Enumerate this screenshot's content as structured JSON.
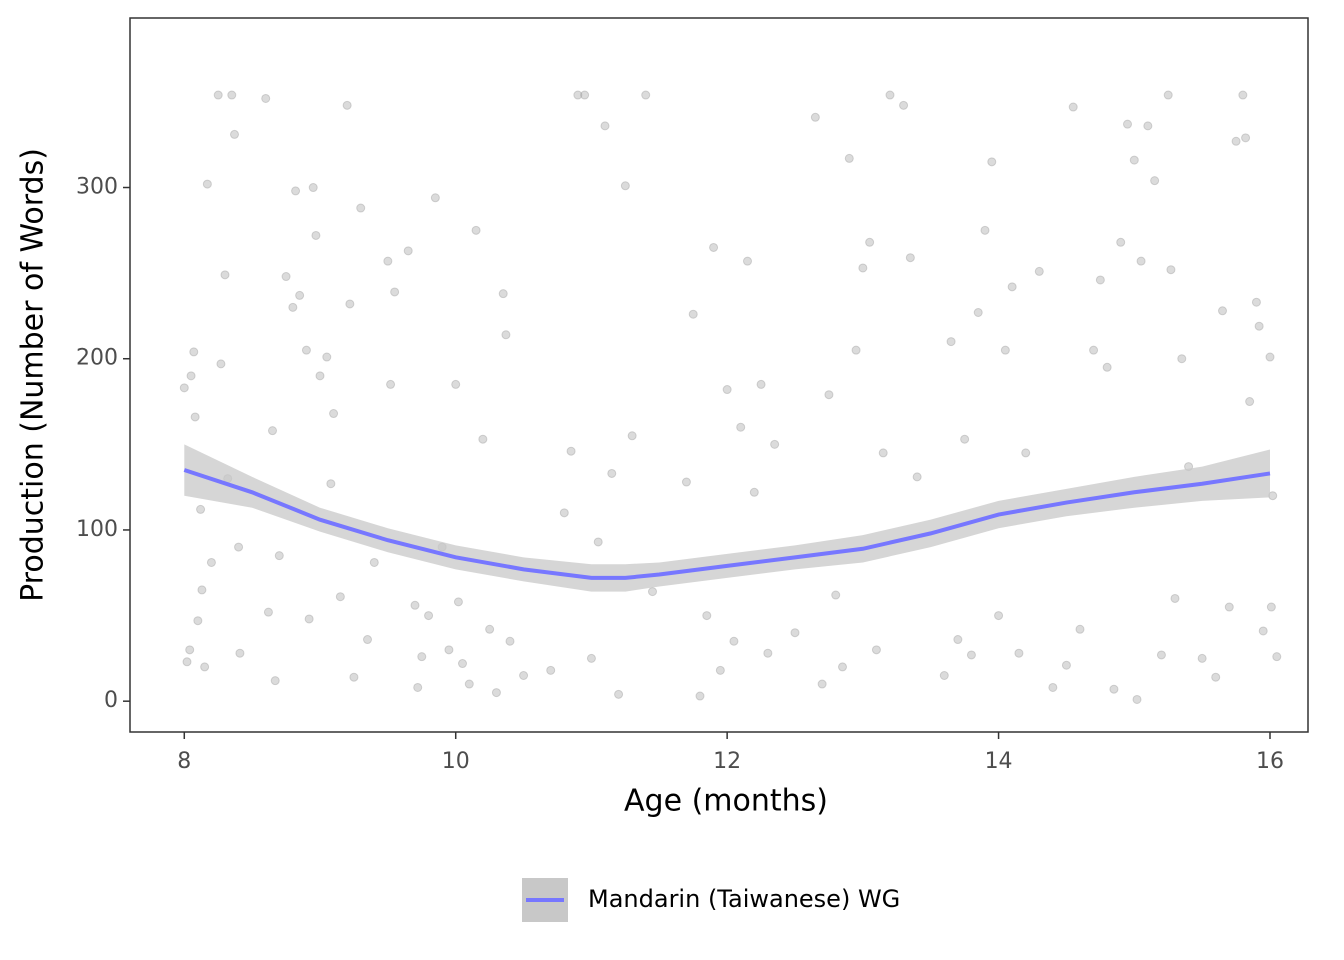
{
  "chart_data": {
    "type": "scatter-smooth",
    "x_label": "Age (months)",
    "y_label": "Production (Number of Words)",
    "xlim": [
      7.6,
      16.28
    ],
    "ylim": [
      -18,
      399
    ],
    "xticks": [
      8,
      10,
      12,
      14,
      16
    ],
    "yticks": [
      0,
      100,
      200,
      300
    ],
    "grid": false,
    "legend": "bottom",
    "points": {
      "color": "#999999",
      "x": [
        8.0,
        8.02,
        8.04,
        8.05,
        8.07,
        8.08,
        8.1,
        8.12,
        8.13,
        8.15,
        8.17,
        8.2,
        8.25,
        8.27,
        8.3,
        8.32,
        8.35,
        8.37,
        8.4,
        8.41,
        8.6,
        8.62,
        8.65,
        8.67,
        8.7,
        8.75,
        8.8,
        8.82,
        8.85,
        8.9,
        8.92,
        8.95,
        8.97,
        9.0,
        9.05,
        9.08,
        9.1,
        9.15,
        9.2,
        9.22,
        9.25,
        9.3,
        9.35,
        9.4,
        9.5,
        9.55,
        9.52,
        9.65,
        9.7,
        9.72,
        9.75,
        9.8,
        9.85,
        9.9,
        9.95,
        10.0,
        10.02,
        10.05,
        10.1,
        10.15,
        10.2,
        10.25,
        10.3,
        10.35,
        10.37,
        10.4,
        10.5,
        10.7,
        10.8,
        10.85,
        10.9,
        10.95,
        11.0,
        11.05,
        11.1,
        11.15,
        11.2,
        11.25,
        11.3,
        11.4,
        11.45,
        11.7,
        11.75,
        11.8,
        11.85,
        11.9,
        11.95,
        12.0,
        12.05,
        12.1,
        12.15,
        12.2,
        12.25,
        12.3,
        12.35,
        12.5,
        12.65,
        12.7,
        12.75,
        12.8,
        12.85,
        12.9,
        12.95,
        13.0,
        13.05,
        13.1,
        13.15,
        13.2,
        13.3,
        13.35,
        13.4,
        13.6,
        13.65,
        13.7,
        13.75,
        13.8,
        13.85,
        13.9,
        13.95,
        14.0,
        14.05,
        14.1,
        14.15,
        14.2,
        14.3,
        14.4,
        14.5,
        14.55,
        14.6,
        14.7,
        14.75,
        14.8,
        14.85,
        14.9,
        14.95,
        15.0,
        15.02,
        15.05,
        15.1,
        15.15,
        15.2,
        15.25,
        15.27,
        15.3,
        15.35,
        15.4,
        15.5,
        15.6,
        15.65,
        15.7,
        15.75,
        15.8,
        15.82,
        15.85,
        15.9,
        15.92,
        15.95,
        16.0,
        16.02,
        16.05,
        16.01
      ],
      "values": [
        183,
        23,
        30,
        190,
        204,
        166,
        47,
        112,
        65,
        20,
        302,
        81,
        354,
        197,
        249,
        130,
        354,
        331,
        90,
        28,
        352,
        52,
        158,
        12,
        85,
        248,
        230,
        298,
        237,
        205,
        48,
        300,
        272,
        190,
        201,
        127,
        168,
        61,
        348,
        232,
        14,
        288,
        36,
        81,
        257,
        239,
        185,
        263,
        56,
        8,
        26,
        50,
        294,
        90,
        30,
        185,
        58,
        22,
        10,
        275,
        153,
        42,
        5,
        238,
        214,
        35,
        15,
        18,
        110,
        146,
        354,
        354,
        25,
        93,
        336,
        133,
        4,
        301,
        155,
        354,
        64,
        128,
        226,
        3,
        50,
        265,
        18,
        182,
        35,
        160,
        257,
        122,
        185,
        28,
        150,
        40,
        341,
        10,
        179,
        62,
        20,
        317,
        205,
        253,
        268,
        30,
        145,
        354,
        348,
        259,
        131,
        15,
        210,
        36,
        153,
        27,
        227,
        275,
        315,
        50,
        205,
        242,
        28,
        145,
        251,
        8,
        21,
        347,
        42,
        205,
        246,
        195,
        7,
        268,
        337,
        316,
        1,
        257,
        336,
        304,
        27,
        354,
        252,
        60,
        200,
        137,
        25,
        14,
        228,
        55,
        327,
        354,
        329,
        175,
        233,
        219,
        41,
        201,
        120,
        26,
        55
      ]
    },
    "series": [
      {
        "name": "Mandarin (Taiwanese) WG",
        "color": "#7777ff",
        "ribbon_color": "#c8c8c8",
        "x": [
          8,
          8.5,
          9,
          9.5,
          10,
          10.5,
          11,
          11.25,
          11.5,
          12,
          12.5,
          13,
          13.5,
          14,
          14.5,
          15,
          15.5,
          16
        ],
        "values": [
          135,
          122,
          106,
          94,
          84,
          77,
          72,
          72,
          74,
          79,
          84,
          89,
          98,
          109,
          116,
          122,
          127,
          133
        ],
        "lower": [
          120,
          113,
          99,
          87,
          77,
          70,
          64,
          64,
          67,
          72,
          77,
          81,
          90,
          101,
          108,
          113,
          117,
          119
        ],
        "upper": [
          150,
          131,
          113,
          101,
          91,
          84,
          80,
          80,
          81,
          86,
          91,
          97,
          106,
          117,
          124,
          131,
          137,
          147
        ]
      }
    ]
  }
}
